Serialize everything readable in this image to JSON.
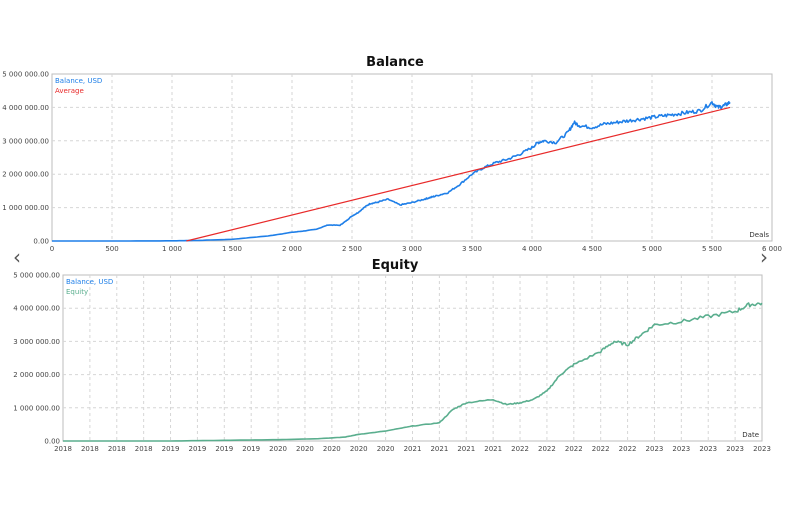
{
  "nav": {
    "prev_icon": "‹",
    "next_icon": "›"
  },
  "chart_data": [
    {
      "type": "line",
      "title": "Balance",
      "xlabel": "Deals",
      "ylabel": "",
      "xlim": [
        0,
        6000
      ],
      "ylim": [
        0,
        5000000
      ],
      "x_ticks": [
        "0",
        "500",
        "1 000",
        "1 500",
        "2 000",
        "2 500",
        "3 000",
        "3 500",
        "4 000",
        "4 500",
        "5 000",
        "5 500",
        "6 000"
      ],
      "y_ticks": [
        "0.00",
        "1 000 000.00",
        "2 000 000.00",
        "3 000 000.00",
        "4 000 000.00",
        "5 000 000.00"
      ],
      "grid": true,
      "legend_position": "top-left",
      "series": [
        {
          "name": "Balance, USD",
          "color": "#1f7fe8",
          "x": [
            0,
            500,
            1000,
            1200,
            1500,
            1800,
            2000,
            2100,
            2200,
            2300,
            2400,
            2450,
            2500,
            2550,
            2600,
            2650,
            2700,
            2800,
            2900,
            3000,
            3100,
            3150,
            3200,
            3300,
            3400,
            3500,
            3600,
            3700,
            3800,
            3900,
            4000,
            4050,
            4100,
            4200,
            4300,
            4350,
            4400,
            4500,
            4600,
            4700,
            4800,
            4900,
            5000,
            5100,
            5200,
            5300,
            5400,
            5500,
            5550,
            5600,
            5650
          ],
          "values": [
            0,
            0,
            5000,
            15000,
            50000,
            150000,
            260000,
            300000,
            350000,
            480000,
            470000,
            600000,
            750000,
            850000,
            1000000,
            1120000,
            1150000,
            1250000,
            1080000,
            1150000,
            1250000,
            1300000,
            1350000,
            1450000,
            1700000,
            2000000,
            2200000,
            2350000,
            2450000,
            2600000,
            2800000,
            2950000,
            3000000,
            2950000,
            3250000,
            3550000,
            3450000,
            3400000,
            3500000,
            3550000,
            3600000,
            3650000,
            3700000,
            3750000,
            3800000,
            3850000,
            3900000,
            4150000,
            4000000,
            4050000,
            4150000
          ]
        },
        {
          "name": "Average",
          "color": "#e82a2a",
          "x": [
            1120,
            5650
          ],
          "values": [
            0,
            4000000
          ]
        }
      ]
    },
    {
      "type": "line",
      "title": "Equity",
      "xlabel": "Date",
      "ylabel": "",
      "xlim": [
        0,
        26
      ],
      "ylim": [
        0,
        5000000
      ],
      "x_ticks": [
        "2018",
        "2018",
        "2018",
        "2018",
        "2019",
        "2019",
        "2019",
        "2019",
        "2020",
        "2020",
        "2020",
        "2020",
        "2020",
        "2021",
        "2021",
        "2021",
        "2021",
        "2022",
        "2022",
        "2022",
        "2022",
        "2022",
        "2023",
        "2023",
        "2023",
        "2023",
        "2023"
      ],
      "y_ticks": [
        "0.00",
        "1 000 000.00",
        "2 000 000.00",
        "3 000 000.00",
        "4 000 000.00",
        "5 000 000.00"
      ],
      "grid": true,
      "legend_position": "top-left",
      "series": [
        {
          "name": "Balance, USD",
          "color": "#1f7fe8",
          "x": [],
          "values": []
        },
        {
          "name": "Equity",
          "color": "#5aae8e",
          "x": [
            0,
            4,
            6,
            8,
            9.5,
            10.5,
            11,
            12,
            13,
            14,
            14.5,
            15,
            16,
            16.5,
            17,
            17.5,
            18,
            18.5,
            19,
            20,
            20.5,
            21,
            21.5,
            22,
            23,
            24,
            25,
            25.5,
            26
          ],
          "values": [
            0,
            0,
            20000,
            40000,
            70000,
            120000,
            200000,
            300000,
            450000,
            550000,
            950000,
            1150000,
            1250000,
            1100000,
            1150000,
            1250000,
            1500000,
            2000000,
            2300000,
            2700000,
            3000000,
            2900000,
            3200000,
            3500000,
            3600000,
            3750000,
            3900000,
            4100000,
            4150000
          ]
        }
      ]
    }
  ]
}
